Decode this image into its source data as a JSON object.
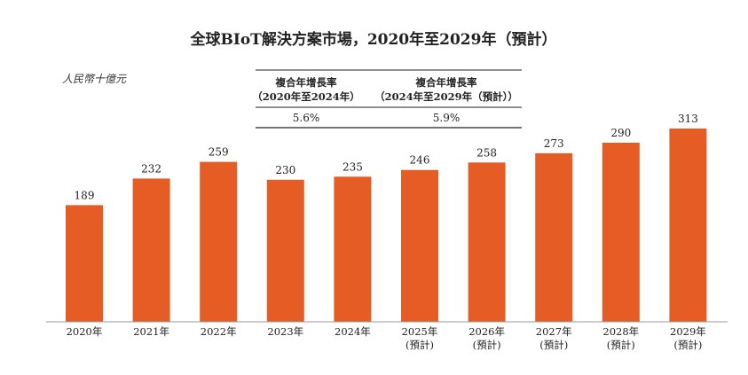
{
  "chart_data": {
    "type": "bar",
    "title": "全球BIoT解決方案市場，2020年至2029年（預計）",
    "unit_label": "人民幣十億元",
    "categories": [
      {
        "line1": "2020年",
        "line2": ""
      },
      {
        "line1": "2021年",
        "line2": ""
      },
      {
        "line1": "2022年",
        "line2": ""
      },
      {
        "line1": "2023年",
        "line2": ""
      },
      {
        "line1": "2024年",
        "line2": ""
      },
      {
        "line1": "2025年",
        "line2": "(預計)"
      },
      {
        "line1": "2026年",
        "line2": "(預計)"
      },
      {
        "line1": "2027年",
        "line2": "(預計)"
      },
      {
        "line1": "2028年",
        "line2": "(預計)"
      },
      {
        "line1": "2029年",
        "line2": "(預計)"
      }
    ],
    "values": [
      189,
      232,
      259,
      230,
      235,
      246,
      258,
      273,
      290,
      313
    ],
    "value_labels": [
      "189",
      "232",
      "259",
      "230",
      "235",
      "246",
      "258",
      "273",
      "290",
      "313"
    ],
    "ylim": [
      0,
      313
    ],
    "bar_color": "#e65c25",
    "grid": false,
    "cagr_table": [
      {
        "header_line1": "複合年增長率",
        "header_line2": "（2020年至2024年）",
        "value": "5.6%"
      },
      {
        "header_line1": "複合年增長率",
        "header_line2": "（2024年至2029年（預計））",
        "value": "5.9%"
      }
    ]
  }
}
